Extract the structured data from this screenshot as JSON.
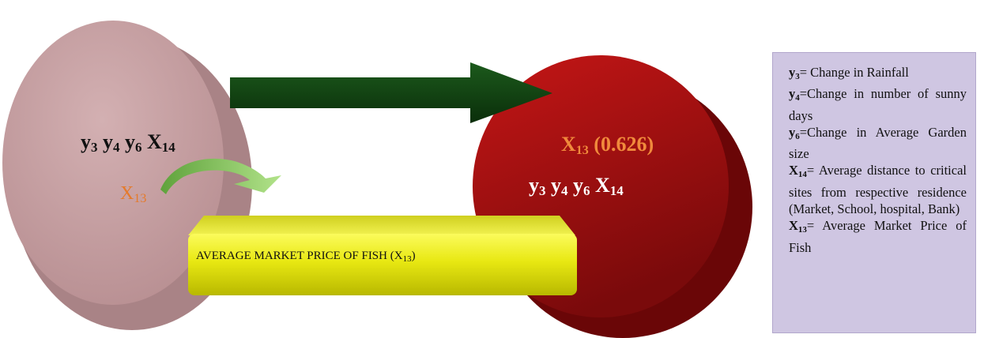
{
  "left_group": {
    "vars": [
      {
        "sym": "y",
        "sub": "3"
      },
      {
        "sym": "y",
        "sub": "4"
      },
      {
        "sym": "y",
        "sub": "6"
      },
      {
        "sym": "X",
        "sub": "14"
      }
    ],
    "x13": {
      "sym": "X",
      "sub": "13"
    }
  },
  "right_group": {
    "x13": {
      "sym": "X",
      "sub": "13",
      "value": " (0.626)"
    },
    "vars": [
      {
        "sym": "y",
        "sub": "3"
      },
      {
        "sym": "y",
        "sub": "4"
      },
      {
        "sym": "y",
        "sub": "6"
      },
      {
        "sym": "X",
        "sub": "14"
      }
    ]
  },
  "bar": {
    "text": "AVERAGE MARKET PRICE OF FISH (X",
    "sub": "13",
    "close": ")"
  },
  "legend": [
    {
      "sym": "y",
      "sub": "3",
      "def": "= Change in Rainfall"
    },
    {
      "sym": "y",
      "sub": "4",
      "def": "=Change in number of sunny days"
    },
    {
      "sym": "y",
      "sub": "6",
      "def": "=Change in Average Garden size"
    },
    {
      "sym": "X",
      "sub": "14",
      "def": "= Average distance to critical sites from respective residence (Market, School, hospital, Bank)"
    },
    {
      "sym": "X",
      "sub": "13",
      "def": "= Average Market Price of Fish"
    }
  ],
  "colors": {
    "left_cylinder": "#c9a3a5",
    "right_cylinder": "#a90f10",
    "arrow": "#0f3f0f",
    "curved_arrow": "#7fc45a",
    "bar": "#e6e610",
    "legend_bg": "#cfc6e2",
    "x13_orange": "#e57a2a"
  }
}
